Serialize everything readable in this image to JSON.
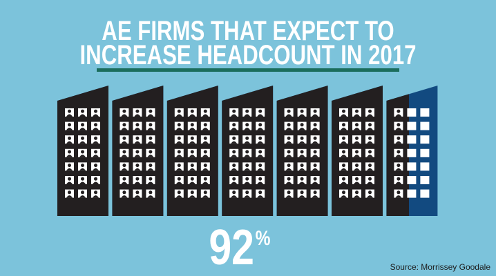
{
  "chart_data": {
    "type": "pictograph",
    "title": [
      "AE FIRMS THAT EXPECT TO",
      "INCREASE HEADCOUNT IN 2017"
    ],
    "value": 92,
    "unit": "%",
    "source": "Source: Morrissey Goodale",
    "color": "#231f20",
    "rest_color": "#124a80",
    "background": "#7cc3db"
  }
}
